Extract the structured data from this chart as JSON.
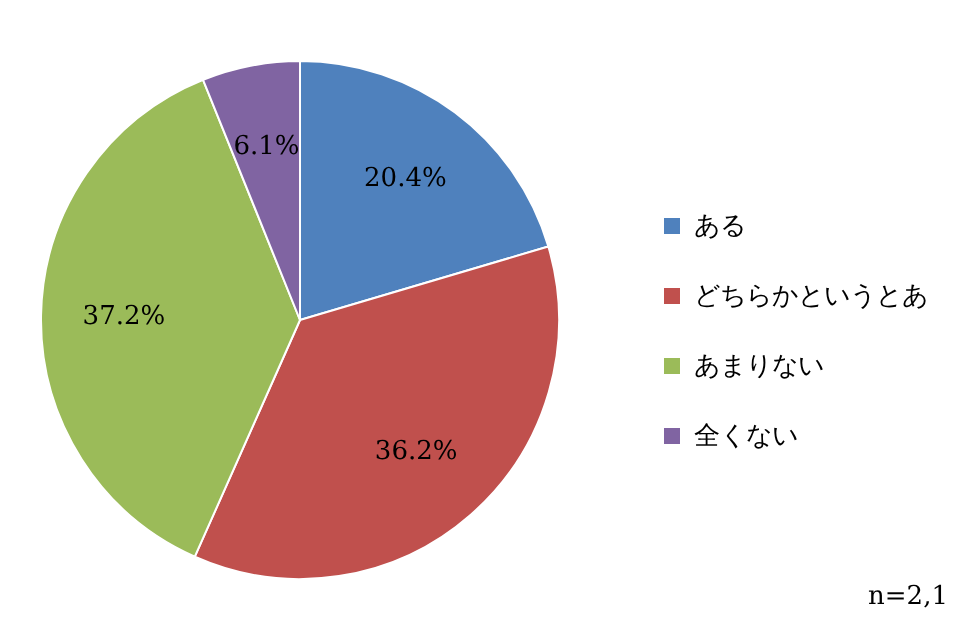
{
  "chart_data": {
    "type": "pie",
    "categories": [
      "ある",
      "どちらかというとあ",
      "あまりない",
      "全くない"
    ],
    "values": [
      20.4,
      36.2,
      37.2,
      6.1
    ],
    "colors": [
      "#4f81bd",
      "#c0504d",
      "#9bbb59",
      "#8064a2"
    ],
    "value_labels": [
      "20.4%",
      "36.2%",
      "37.2%",
      "6.1%"
    ],
    "legend": "right",
    "annotations": [
      "n=2,1"
    ]
  }
}
